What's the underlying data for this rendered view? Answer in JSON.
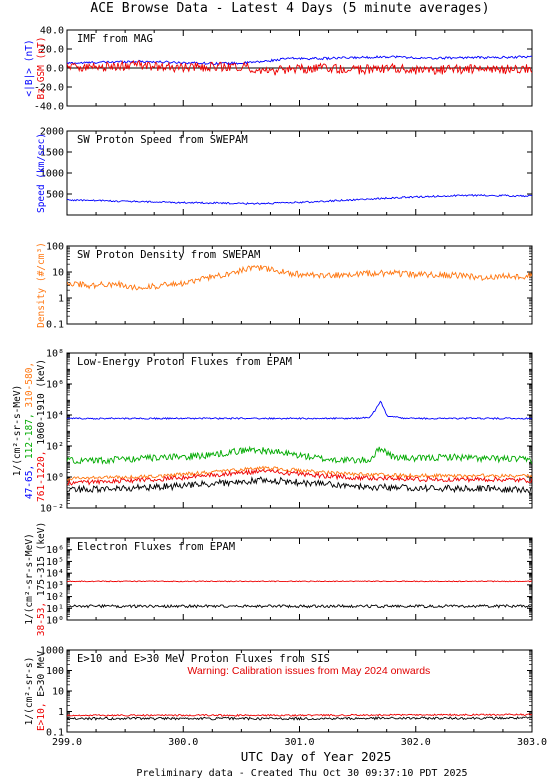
{
  "title": "ACE Browse Data - Latest 4 Days (5 minute averages)",
  "xlabel": "UTC Day of Year 2025",
  "footer": "Preliminary data - Created Thu Oct 30 09:37:10 PDT 2025",
  "colors": {
    "blue": "#0000ff",
    "red": "#ee0000",
    "orange": "#ff7711",
    "green": "#00aa00",
    "black": "#000000"
  },
  "chart_data": [
    {
      "type": "line",
      "id": "mag",
      "title": "IMF from MAG",
      "scale": "linear",
      "xlim": [
        299.0,
        303.0
      ],
      "ylim": [
        -40,
        40
      ],
      "yticks": [
        -40,
        -20,
        0,
        20,
        40
      ],
      "ytick_labels": [
        "-40.0",
        "-20.0",
        "0.0",
        "20.0",
        "40.0"
      ],
      "ylabel": [
        {
          "text": "<|B|> (nT)",
          "color": "#0000ff"
        },
        {
          "text": "Bz GSM (nT)",
          "color": "#ee0000"
        }
      ],
      "zero_line": true,
      "series": [
        {
          "name": "<|B|>",
          "color": "#0000ff",
          "x": [
            299.0,
            299.3,
            299.6,
            299.9,
            300.2,
            300.5,
            300.7,
            300.9,
            301.2,
            301.5,
            301.8,
            302.1,
            302.4,
            302.7,
            303.0
          ],
          "y": [
            5,
            6,
            7,
            6,
            5,
            5,
            7,
            10,
            10,
            11,
            12,
            10,
            11,
            11,
            12
          ],
          "noise": 1.2
        },
        {
          "name": "Bz GSM",
          "color": "#ee0000",
          "x": [
            299.0,
            299.3,
            299.6,
            299.9,
            300.2,
            300.5,
            300.7,
            300.9,
            301.2,
            301.5,
            301.8,
            302.1,
            302.4,
            302.7,
            303.0
          ],
          "y": [
            2,
            1,
            3,
            0,
            1,
            2,
            -4,
            -2,
            0,
            -2,
            0,
            -3,
            -1,
            -2,
            0
          ],
          "noise": 5
        }
      ]
    },
    {
      "type": "line",
      "id": "speed",
      "title": "SW Proton Speed from SWEPAM",
      "scale": "linear",
      "xlim": [
        299.0,
        303.0
      ],
      "ylim": [
        0,
        2000
      ],
      "yticks": [
        500,
        1000,
        1500,
        2000
      ],
      "ytick_labels": [
        "500",
        "1000",
        "1500",
        "2000"
      ],
      "ylabel": [
        {
          "text": "Speed (km/sec)",
          "color": "#0000ff"
        }
      ],
      "series": [
        {
          "name": "Speed",
          "color": "#0000ff",
          "x": [
            299.0,
            299.3,
            299.6,
            299.9,
            300.2,
            300.5,
            300.8,
            301.0,
            301.3,
            301.6,
            301.9,
            302.2,
            302.5,
            302.8,
            303.0
          ],
          "y": [
            360,
            340,
            320,
            300,
            290,
            270,
            280,
            300,
            340,
            380,
            420,
            450,
            470,
            460,
            450
          ],
          "noise": 20
        }
      ]
    },
    {
      "type": "line",
      "id": "density",
      "title": "SW Proton Density from SWEPAM",
      "scale": "log",
      "xlim": [
        299.0,
        303.0
      ],
      "ylim": [
        0.1,
        100
      ],
      "yticks": [
        0.1,
        1,
        10,
        100
      ],
      "ytick_labels": [
        "0.1",
        "1",
        "10",
        "100"
      ],
      "ylabel": [
        {
          "text": "Density (#/cm³)",
          "color": "#ff7711"
        }
      ],
      "series": [
        {
          "name": "Density",
          "color": "#ff7711",
          "x": [
            299.0,
            299.2,
            299.4,
            299.6,
            299.8,
            300.0,
            300.2,
            300.4,
            300.6,
            300.8,
            301.0,
            301.2,
            301.4,
            301.6,
            301.8,
            302.0,
            302.2,
            302.4,
            302.6,
            302.8,
            303.0
          ],
          "y": [
            4,
            3,
            3.5,
            2.5,
            3,
            3.5,
            6,
            9,
            16,
            11,
            8,
            7,
            8,
            9,
            9,
            8,
            8,
            7,
            6,
            7,
            7
          ],
          "noise": 0.12
        }
      ]
    },
    {
      "type": "line",
      "id": "proton",
      "title": "Low-Energy Proton Fluxes from EPAM",
      "scale": "log",
      "xlim": [
        299.0,
        303.0
      ],
      "ylim": [
        0.01,
        100000000
      ],
      "yticks": [
        0.01,
        1,
        100,
        10000,
        1000000,
        100000000
      ],
      "ytick_labels": [
        "10⁻²",
        "10⁰",
        "10²",
        "10⁴",
        "10⁶",
        "10⁸"
      ],
      "ylabel": [
        {
          "text": "1/(cm²-sr-s-MeV)",
          "color": "#000000"
        },
        {
          "parts": [
            {
              "text": "47-65, ",
              "color": "#0000ff"
            },
            {
              "text": "112-187, ",
              "color": "#00aa00"
            },
            {
              "text": "310-580,",
              "color": "#ff7711"
            }
          ]
        },
        {
          "parts": [
            {
              "text": "761-1220, ",
              "color": "#ee0000"
            },
            {
              "text": "1060-1910 (keV)",
              "color": "#000000"
            }
          ]
        }
      ],
      "series": [
        {
          "name": "47-65 keV",
          "color": "#0000ff",
          "x": [
            299.0,
            299.5,
            300.0,
            300.5,
            301.0,
            301.5,
            301.6,
            301.65,
            301.7,
            301.75,
            301.9,
            302.0,
            302.5,
            303.0
          ],
          "y": [
            6000,
            6000,
            6000,
            6000,
            6000,
            6000,
            7000,
            20000,
            80000,
            9000,
            6000,
            6000,
            6000,
            6000
          ],
          "noise": 0.05
        },
        {
          "name": "112-187 keV",
          "color": "#00aa00",
          "x": [
            299.0,
            299.3,
            299.6,
            299.9,
            300.2,
            300.4,
            300.6,
            300.8,
            301.0,
            301.2,
            301.4,
            301.6,
            301.7,
            301.8,
            302.0,
            302.3,
            302.6,
            302.8,
            303.0
          ],
          "y": [
            12,
            12,
            15,
            18,
            25,
            40,
            60,
            40,
            25,
            15,
            12,
            12,
            80,
            20,
            15,
            20,
            15,
            15,
            12
          ],
          "noise": 0.22
        },
        {
          "name": "310-580 keV",
          "color": "#ff7711",
          "x": [
            299.0,
            299.3,
            299.6,
            299.9,
            300.2,
            300.5,
            300.7,
            300.9,
            301.2,
            301.5,
            301.8,
            302.1,
            302.4,
            302.7,
            303.0
          ],
          "y": [
            0.8,
            0.9,
            1.0,
            1.3,
            2,
            3,
            4,
            3,
            2,
            1.5,
            1.3,
            1.2,
            1.2,
            1.2,
            1.1
          ],
          "noise": 0.12
        },
        {
          "name": "761-1220 keV",
          "color": "#ee0000",
          "x": [
            299.0,
            299.3,
            299.6,
            299.9,
            300.2,
            300.5,
            300.7,
            300.9,
            301.2,
            301.5,
            301.8,
            302.1,
            302.4,
            302.7,
            303.0
          ],
          "y": [
            0.4,
            0.5,
            0.6,
            0.8,
            1.2,
            1.8,
            2.5,
            1.8,
            1.2,
            0.9,
            0.8,
            0.7,
            0.7,
            0.7,
            0.6
          ],
          "noise": 0.15
        },
        {
          "name": "1060-1910 keV",
          "color": "#000000",
          "x": [
            299.0,
            299.3,
            299.6,
            299.9,
            300.2,
            300.5,
            300.7,
            300.9,
            301.2,
            301.5,
            301.8,
            302.1,
            302.4,
            302.7,
            303.0
          ],
          "y": [
            0.15,
            0.18,
            0.2,
            0.25,
            0.35,
            0.5,
            0.7,
            0.5,
            0.35,
            0.25,
            0.2,
            0.18,
            0.18,
            0.17,
            0.15
          ],
          "noise": 0.22
        }
      ]
    },
    {
      "type": "line",
      "id": "electron",
      "title": "Electron Fluxes from EPAM",
      "scale": "log",
      "xlim": [
        299.0,
        303.0
      ],
      "ylim": [
        1,
        10000000
      ],
      "yticks": [
        1,
        10,
        100,
        1000,
        10000,
        100000,
        1000000
      ],
      "ytick_labels": [
        "10⁰",
        "10¹",
        "10²",
        "10³",
        "10⁴",
        "10⁵",
        "10⁶"
      ],
      "ylabel": [
        {
          "text": "1/(cm²-sr-s-MeV)",
          "color": "#000000"
        },
        {
          "parts": [
            {
              "text": "38-53, ",
              "color": "#ee0000"
            },
            {
              "text": "175-315 (keV)",
              "color": "#000000"
            }
          ]
        }
      ],
      "series": [
        {
          "name": "38-53 keV",
          "color": "#ee0000",
          "x": [
            299.0,
            300.0,
            301.0,
            302.0,
            303.0
          ],
          "y": [
            2000,
            2000,
            2000,
            2000,
            2000
          ],
          "noise": 0.04
        },
        {
          "name": "175-315 keV",
          "color": "#000000",
          "x": [
            299.0,
            300.0,
            301.0,
            302.0,
            303.0
          ],
          "y": [
            15,
            15,
            15,
            15,
            15
          ],
          "noise": 0.12
        }
      ]
    },
    {
      "type": "line",
      "id": "sis",
      "title": "E>10 and E>30 MeV Proton Fluxes from SIS",
      "scale": "log",
      "xlim": [
        299.0,
        303.0
      ],
      "ylim": [
        0.1,
        1000
      ],
      "yticks": [
        0.1,
        1,
        10,
        100,
        1000
      ],
      "ytick_labels": [
        "0.1",
        "1",
        "10",
        "100",
        "1000"
      ],
      "ylabel": [
        {
          "text": "1/(cm²-sr-s)",
          "color": "#000000"
        },
        {
          "parts": [
            {
              "text": "E>10, ",
              "color": "#ee0000"
            },
            {
              "text": "E>30 MeV",
              "color": "#000000"
            }
          ]
        }
      ],
      "annotation": "Warning: Calibration issues from May 2024 onwards",
      "series": [
        {
          "name": "E>10 MeV",
          "color": "#ee0000",
          "x": [
            299.0,
            300.0,
            301.0,
            302.0,
            303.0
          ],
          "y": [
            0.65,
            0.65,
            0.65,
            0.68,
            0.7
          ],
          "noise": 0.04
        },
        {
          "name": "E>30 MeV",
          "color": "#000000",
          "x": [
            299.0,
            300.0,
            301.0,
            302.0,
            303.0
          ],
          "y": [
            0.45,
            0.45,
            0.45,
            0.47,
            0.48
          ],
          "noise": 0.06
        }
      ]
    }
  ],
  "x_axis": {
    "ticks": [
      299.0,
      300.0,
      301.0,
      302.0,
      303.0
    ],
    "tick_labels": [
      "299.0",
      "300.0",
      "301.0",
      "302.0",
      "303.0"
    ]
  }
}
